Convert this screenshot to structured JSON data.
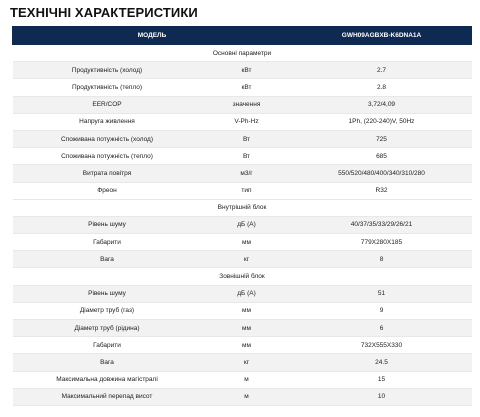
{
  "title": "ТЕХНІЧНІ ХАРАКТЕРИСТИКИ",
  "header": {
    "model_label": "МОДЕЛЬ",
    "model_value": "GWH09AGBXB-K6DNA1A"
  },
  "rows": [
    {
      "section": "Основні параметри"
    },
    {
      "param": "Продуктивність (холод)",
      "unit": "кВт",
      "value": "2.7"
    },
    {
      "param": "Продуктивність (тепло)",
      "unit": "кВт",
      "value": "2.8"
    },
    {
      "param": "EER/COP",
      "unit": "значення",
      "value": "3,72/4,09"
    },
    {
      "param": "Напруга живлення",
      "unit": "V-Ph-Hz",
      "value": "1Ph, (220-240)V, 50Hz"
    },
    {
      "param": "Споживана потужність (холод)",
      "unit": "Вт",
      "value": "725"
    },
    {
      "param": "Споживана потужність (тепло)",
      "unit": "Вт",
      "value": "685"
    },
    {
      "param": "Витрата повітря",
      "unit": "м3/г",
      "value": "550/520/480/400/340/310/280"
    },
    {
      "param": "Фреон",
      "unit": "тип",
      "value": "R32"
    },
    {
      "section": "Внутрішній блок"
    },
    {
      "param": "Рівень шуму",
      "unit": "дБ (А)",
      "value": "40/37/35/33/29/26/21"
    },
    {
      "param": "Габарити",
      "unit": "мм",
      "value": "779Х280Х185"
    },
    {
      "param": "Вага",
      "unit": "кг",
      "value": "8"
    },
    {
      "section": "Зовнішній блок"
    },
    {
      "param": "Рівень шуму",
      "unit": "дБ (А)",
      "value": "51"
    },
    {
      "param": "Діаметр труб (газ)",
      "unit": "мм",
      "value": "9"
    },
    {
      "param": "Діаметр труб (рідина)",
      "unit": "мм",
      "value": "6"
    },
    {
      "param": "Габарити",
      "unit": "мм",
      "value": "732Х555Х330"
    },
    {
      "param": "Вага",
      "unit": "кг",
      "value": "24.5"
    },
    {
      "param": "Максимальна довжина магістралі",
      "unit": "м",
      "value": "15"
    },
    {
      "param": "Максимальний перепад висот",
      "unit": "м",
      "value": "10"
    }
  ]
}
